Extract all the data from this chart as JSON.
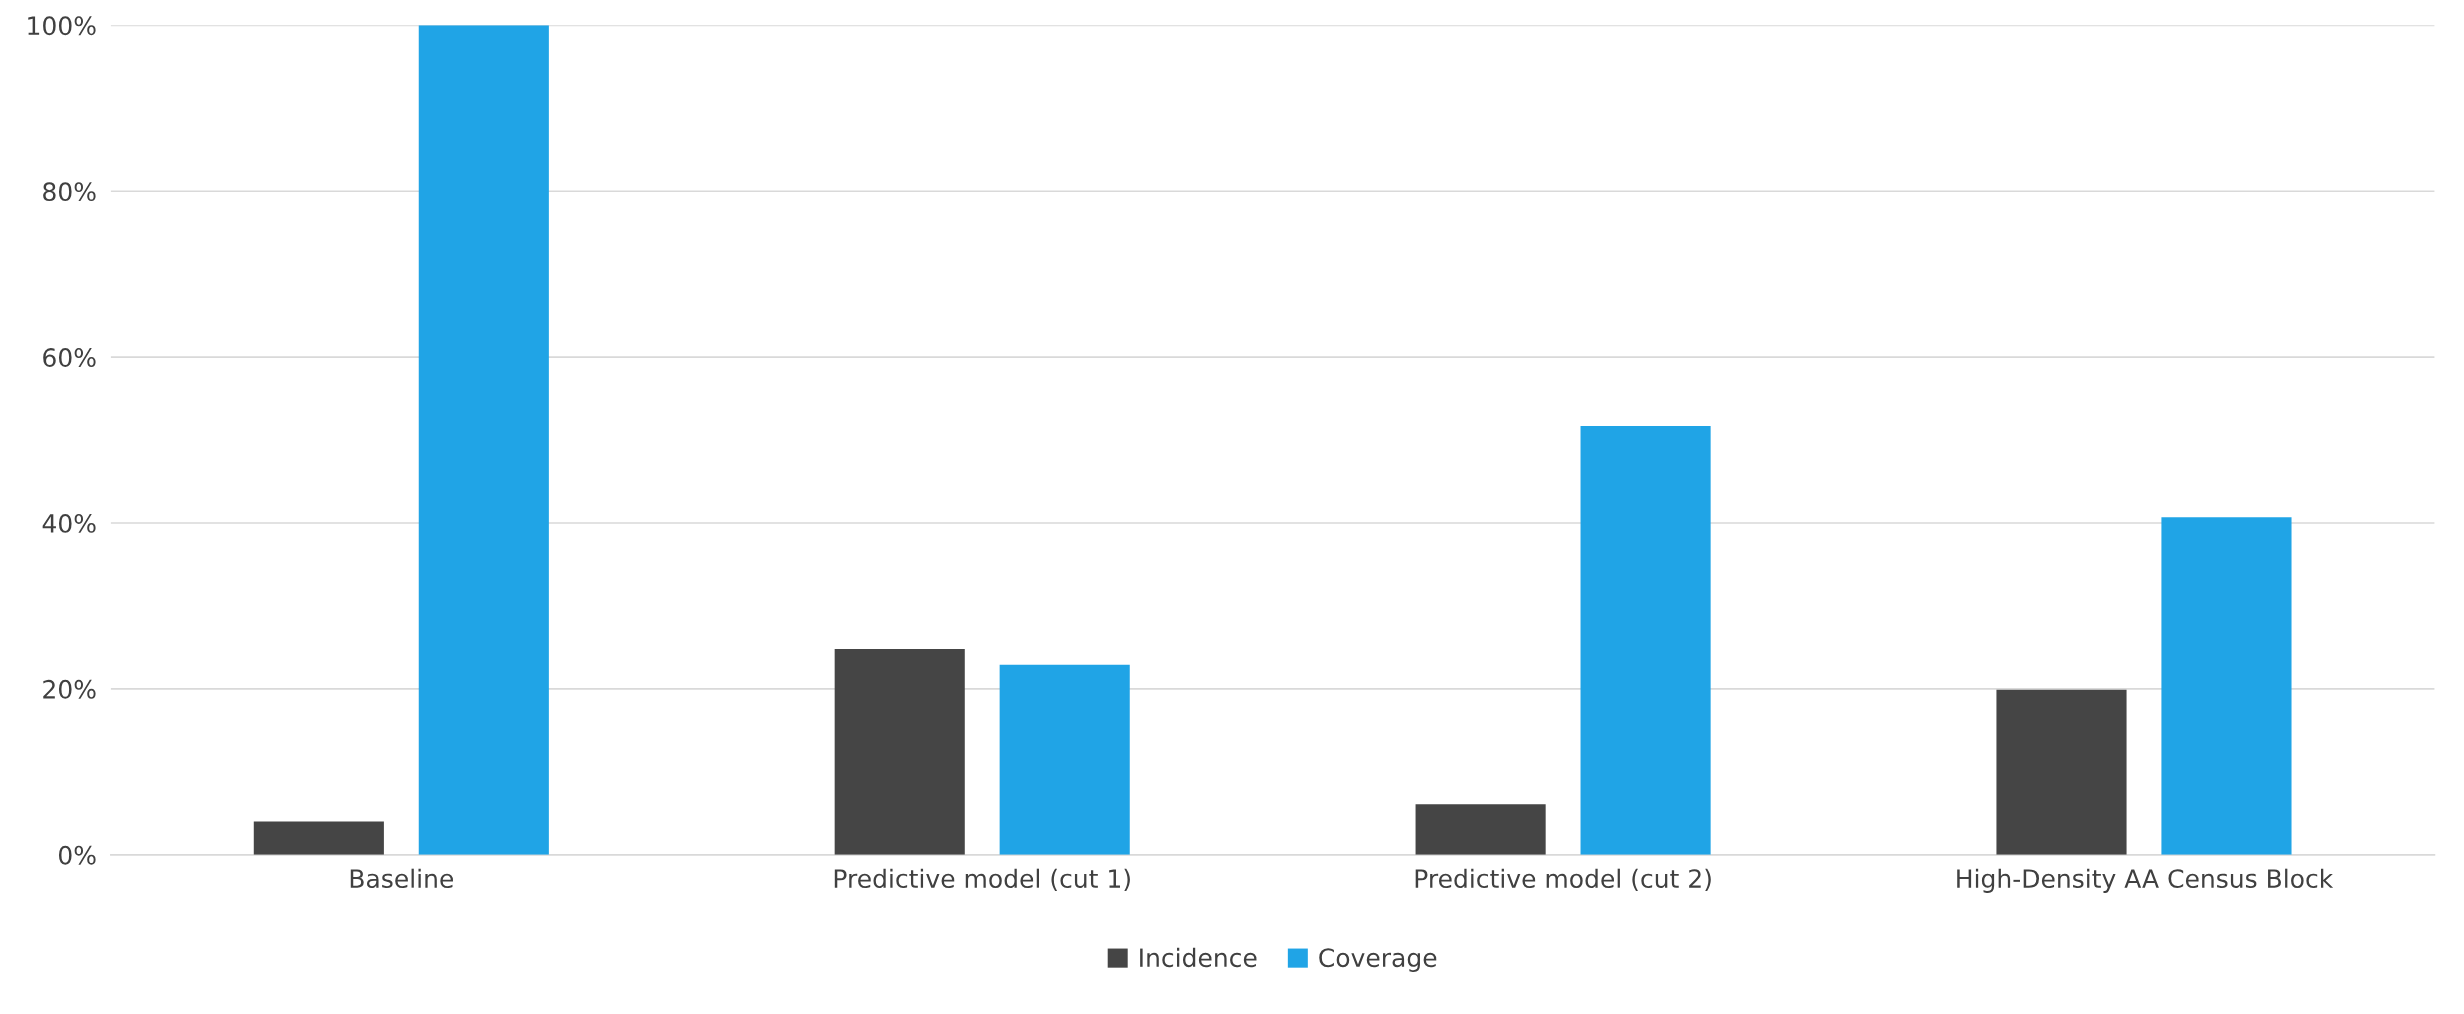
{
  "chart_data": {
    "type": "bar",
    "categories": [
      "Baseline",
      "Predictive model (cut 1)",
      "Predictive model (cut 2)",
      "High-Density AA Census Block"
    ],
    "series": [
      {
        "name": "Incidence",
        "color": "#454545",
        "values": [
          0.04,
          0.248,
          0.061,
          0.199
        ]
      },
      {
        "name": "Coverage",
        "color": "#20a4e6",
        "values": [
          1.0,
          0.229,
          0.517,
          0.407
        ]
      }
    ],
    "ylim": [
      0,
      1
    ],
    "yticks": [
      {
        "value": 0,
        "label": "0%"
      },
      {
        "value": 0.2,
        "label": "20%"
      },
      {
        "value": 0.4,
        "label": "40%"
      },
      {
        "value": 0.6,
        "label": "60%"
      },
      {
        "value": 0.8,
        "label": "80%"
      },
      {
        "value": 1.0,
        "label": "100%"
      }
    ],
    "grid": "y",
    "legend": "bottom"
  }
}
